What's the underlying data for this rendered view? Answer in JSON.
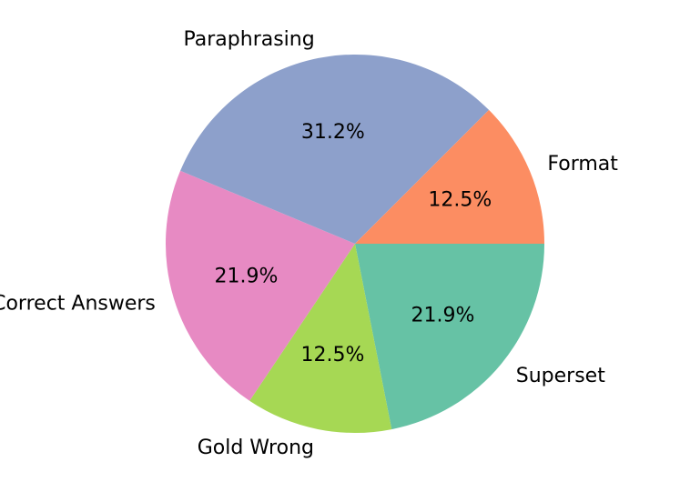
{
  "chart_data": {
    "type": "pie",
    "title": "",
    "categories": [
      "Superset",
      "Gold Wrong",
      "Multiple Correct Answers",
      "Paraphrasing",
      "Format"
    ],
    "values": [
      21.9,
      12.5,
      21.9,
      31.2,
      12.5
    ],
    "value_labels": [
      "21.9%",
      "12.5%",
      "21.9%",
      "31.2%",
      "12.5%"
    ],
    "colors": [
      "#66c2a5",
      "#a6d854",
      "#e78ac3",
      "#8da0cb",
      "#fc8d62"
    ],
    "start_angle_deg": 0,
    "direction": "counterclockwise-in-data-order-drawn-clockwise-on-screen",
    "legend": "none"
  }
}
